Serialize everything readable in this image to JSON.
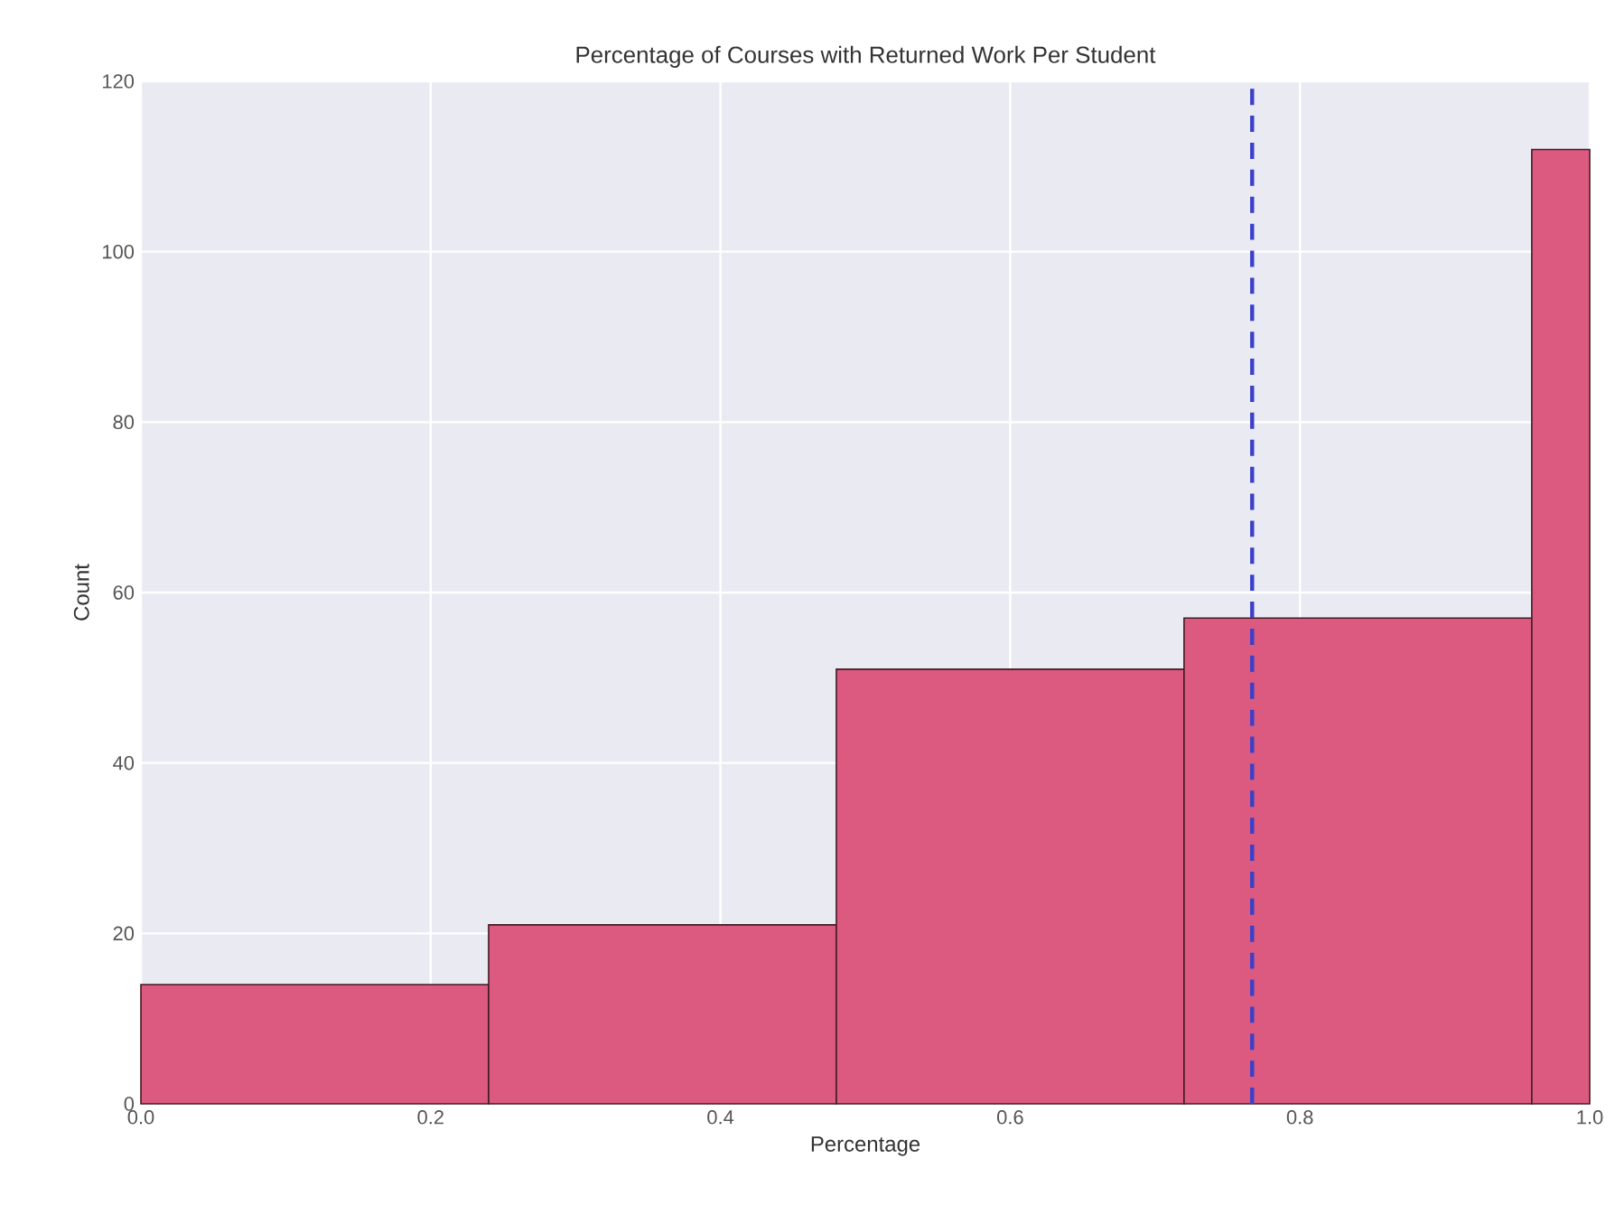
{
  "chart_data": {
    "type": "histogram",
    "title": "Percentage of Courses with Returned Work Per Student",
    "xlabel": "Percentage",
    "ylabel": "Count",
    "bins": [
      0,
      0.24,
      0.48,
      0.72,
      0.96,
      1.0
    ],
    "values": [
      14,
      21,
      51,
      57,
      112
    ],
    "color": "#dc5a80",
    "xlim": [
      0,
      1
    ],
    "xticks": [
      {
        "value": 0,
        "label": "0.0"
      },
      {
        "value": 0.2,
        "label": "0.2"
      },
      {
        "value": 0.4,
        "label": "0.4"
      },
      {
        "value": 0.6,
        "label": "0.6"
      },
      {
        "value": 0.8,
        "label": "0.8"
      },
      {
        "value": 1,
        "label": "1.0"
      }
    ],
    "ylim": [
      0,
      120
    ],
    "yticks": [
      0,
      20,
      40,
      60,
      80,
      100,
      120
    ],
    "grid": true,
    "ref_lines": [
      {
        "axis": "x",
        "value": 0.767,
        "color": "#3a40c8",
        "line_style": "dashed"
      }
    ]
  }
}
